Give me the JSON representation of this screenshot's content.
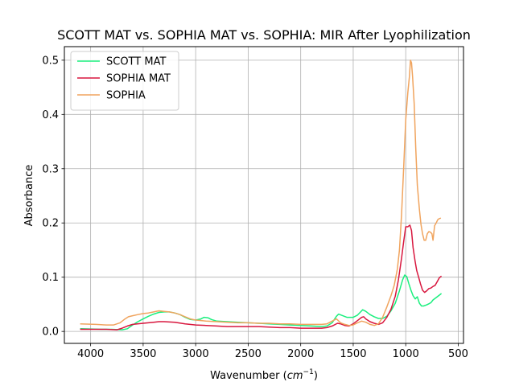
{
  "chart_data": {
    "type": "line",
    "title": "SCOTT MAT vs. SOPHIA MAT vs. SOPHIA: MIR After Lyophilization",
    "xlabel": "Wavenumber",
    "xlabel_unit_base": "cm",
    "xlabel_unit_exp": "−1",
    "ylabel": "Absorbance",
    "xlim": [
      4250,
      450
    ],
    "ylim": [
      -0.022,
      0.525
    ],
    "x_inverted": true,
    "grid": true,
    "legend_position": "top-left",
    "xticks": [
      4000,
      3500,
      3000,
      2500,
      2000,
      1500,
      1000,
      500
    ],
    "yticks": [
      0.0,
      0.1,
      0.2,
      0.3,
      0.4,
      0.5
    ],
    "xtick_labels": [
      "4000",
      "3500",
      "3000",
      "2500",
      "2000",
      "1500",
      "1000",
      "500"
    ],
    "ytick_labels": [
      "0.0",
      "0.1",
      "0.2",
      "0.3",
      "0.4",
      "0.5"
    ],
    "series": [
      {
        "name": "SCOTT MAT",
        "color": "#1aef7e",
        "points": [
          [
            4100,
            0.005
          ],
          [
            3900,
            0.004
          ],
          [
            3800,
            0.004
          ],
          [
            3700,
            0.003
          ],
          [
            3650,
            0.005
          ],
          [
            3600,
            0.012
          ],
          [
            3550,
            0.018
          ],
          [
            3500,
            0.023
          ],
          [
            3450,
            0.028
          ],
          [
            3400,
            0.032
          ],
          [
            3350,
            0.035
          ],
          [
            3300,
            0.036
          ],
          [
            3250,
            0.036
          ],
          [
            3200,
            0.034
          ],
          [
            3150,
            0.031
          ],
          [
            3100,
            0.026
          ],
          [
            3050,
            0.022
          ],
          [
            3000,
            0.021
          ],
          [
            2950,
            0.023
          ],
          [
            2920,
            0.026
          ],
          [
            2880,
            0.025
          ],
          [
            2850,
            0.022
          ],
          [
            2800,
            0.019
          ],
          [
            2700,
            0.018
          ],
          [
            2600,
            0.017
          ],
          [
            2500,
            0.016
          ],
          [
            2400,
            0.015
          ],
          [
            2300,
            0.014
          ],
          [
            2200,
            0.013
          ],
          [
            2100,
            0.012
          ],
          [
            2000,
            0.011
          ],
          [
            1900,
            0.01
          ],
          [
            1800,
            0.009
          ],
          [
            1750,
            0.01
          ],
          [
            1700,
            0.016
          ],
          [
            1660,
            0.028
          ],
          [
            1640,
            0.032
          ],
          [
            1600,
            0.029
          ],
          [
            1560,
            0.026
          ],
          [
            1500,
            0.026
          ],
          [
            1460,
            0.03
          ],
          [
            1430,
            0.036
          ],
          [
            1410,
            0.04
          ],
          [
            1380,
            0.037
          ],
          [
            1340,
            0.031
          ],
          [
            1300,
            0.027
          ],
          [
            1260,
            0.024
          ],
          [
            1220,
            0.024
          ],
          [
            1180,
            0.028
          ],
          [
            1140,
            0.038
          ],
          [
            1100,
            0.052
          ],
          [
            1060,
            0.075
          ],
          [
            1030,
            0.095
          ],
          [
            1010,
            0.104
          ],
          [
            990,
            0.101
          ],
          [
            970,
            0.088
          ],
          [
            950,
            0.076
          ],
          [
            930,
            0.066
          ],
          [
            910,
            0.06
          ],
          [
            890,
            0.064
          ],
          [
            870,
            0.052
          ],
          [
            850,
            0.047
          ],
          [
            830,
            0.047
          ],
          [
            800,
            0.049
          ],
          [
            780,
            0.051
          ],
          [
            760,
            0.053
          ],
          [
            740,
            0.058
          ],
          [
            720,
            0.061
          ],
          [
            700,
            0.064
          ],
          [
            680,
            0.067
          ],
          [
            660,
            0.07
          ]
        ]
      },
      {
        "name": "SOPHIA MAT",
        "color": "#d8173e",
        "points": [
          [
            4100,
            0.004
          ],
          [
            3950,
            0.004
          ],
          [
            3850,
            0.004
          ],
          [
            3750,
            0.003
          ],
          [
            3700,
            0.006
          ],
          [
            3650,
            0.01
          ],
          [
            3600,
            0.013
          ],
          [
            3500,
            0.015
          ],
          [
            3400,
            0.017
          ],
          [
            3350,
            0.018
          ],
          [
            3300,
            0.018
          ],
          [
            3200,
            0.017
          ],
          [
            3100,
            0.014
          ],
          [
            3000,
            0.012
          ],
          [
            2900,
            0.011
          ],
          [
            2800,
            0.01
          ],
          [
            2700,
            0.009
          ],
          [
            2600,
            0.009
          ],
          [
            2500,
            0.009
          ],
          [
            2400,
            0.009
          ],
          [
            2300,
            0.008
          ],
          [
            2200,
            0.007
          ],
          [
            2100,
            0.007
          ],
          [
            2000,
            0.006
          ],
          [
            1900,
            0.006
          ],
          [
            1800,
            0.006
          ],
          [
            1750,
            0.007
          ],
          [
            1700,
            0.01
          ],
          [
            1650,
            0.015
          ],
          [
            1620,
            0.014
          ],
          [
            1580,
            0.011
          ],
          [
            1540,
            0.01
          ],
          [
            1500,
            0.014
          ],
          [
            1460,
            0.02
          ],
          [
            1420,
            0.026
          ],
          [
            1400,
            0.027
          ],
          [
            1380,
            0.023
          ],
          [
            1340,
            0.018
          ],
          [
            1300,
            0.015
          ],
          [
            1260,
            0.013
          ],
          [
            1220,
            0.016
          ],
          [
            1180,
            0.026
          ],
          [
            1140,
            0.041
          ],
          [
            1100,
            0.065
          ],
          [
            1070,
            0.095
          ],
          [
            1040,
            0.135
          ],
          [
            1020,
            0.165
          ],
          [
            1000,
            0.193
          ],
          [
            980,
            0.193
          ],
          [
            960,
            0.196
          ],
          [
            945,
            0.186
          ],
          [
            930,
            0.155
          ],
          [
            910,
            0.128
          ],
          [
            895,
            0.112
          ],
          [
            880,
            0.102
          ],
          [
            860,
            0.088
          ],
          [
            840,
            0.076
          ],
          [
            820,
            0.072
          ],
          [
            800,
            0.075
          ],
          [
            780,
            0.079
          ],
          [
            760,
            0.08
          ],
          [
            740,
            0.083
          ],
          [
            720,
            0.085
          ],
          [
            700,
            0.092
          ],
          [
            680,
            0.099
          ],
          [
            660,
            0.102
          ]
        ]
      },
      {
        "name": "SOPHIA",
        "color": "#f0a45e",
        "points": [
          [
            4100,
            0.014
          ],
          [
            3950,
            0.013
          ],
          [
            3850,
            0.012
          ],
          [
            3780,
            0.012
          ],
          [
            3720,
            0.016
          ],
          [
            3680,
            0.022
          ],
          [
            3640,
            0.027
          ],
          [
            3600,
            0.029
          ],
          [
            3550,
            0.031
          ],
          [
            3500,
            0.033
          ],
          [
            3450,
            0.034
          ],
          [
            3400,
            0.036
          ],
          [
            3350,
            0.038
          ],
          [
            3300,
            0.037
          ],
          [
            3250,
            0.036
          ],
          [
            3200,
            0.034
          ],
          [
            3150,
            0.031
          ],
          [
            3100,
            0.027
          ],
          [
            3050,
            0.023
          ],
          [
            3000,
            0.021
          ],
          [
            2900,
            0.019
          ],
          [
            2800,
            0.018
          ],
          [
            2700,
            0.017
          ],
          [
            2600,
            0.016
          ],
          [
            2500,
            0.016
          ],
          [
            2400,
            0.015
          ],
          [
            2300,
            0.015
          ],
          [
            2200,
            0.014
          ],
          [
            2100,
            0.014
          ],
          [
            2000,
            0.013
          ],
          [
            1900,
            0.013
          ],
          [
            1800,
            0.013
          ],
          [
            1750,
            0.014
          ],
          [
            1700,
            0.019
          ],
          [
            1660,
            0.023
          ],
          [
            1620,
            0.016
          ],
          [
            1580,
            0.013
          ],
          [
            1540,
            0.011
          ],
          [
            1500,
            0.012
          ],
          [
            1460,
            0.016
          ],
          [
            1420,
            0.019
          ],
          [
            1380,
            0.017
          ],
          [
            1340,
            0.013
          ],
          [
            1300,
            0.011
          ],
          [
            1260,
            0.014
          ],
          [
            1220,
            0.026
          ],
          [
            1180,
            0.045
          ],
          [
            1140,
            0.066
          ],
          [
            1110,
            0.085
          ],
          [
            1080,
            0.115
          ],
          [
            1060,
            0.15
          ],
          [
            1040,
            0.215
          ],
          [
            1020,
            0.3
          ],
          [
            1000,
            0.39
          ],
          [
            980,
            0.44
          ],
          [
            965,
            0.47
          ],
          [
            955,
            0.5
          ],
          [
            945,
            0.495
          ],
          [
            935,
            0.47
          ],
          [
            920,
            0.42
          ],
          [
            905,
            0.34
          ],
          [
            890,
            0.27
          ],
          [
            870,
            0.225
          ],
          [
            855,
            0.198
          ],
          [
            840,
            0.18
          ],
          [
            825,
            0.168
          ],
          [
            810,
            0.168
          ],
          [
            795,
            0.18
          ],
          [
            780,
            0.184
          ],
          [
            765,
            0.183
          ],
          [
            750,
            0.18
          ],
          [
            740,
            0.168
          ],
          [
            725,
            0.195
          ],
          [
            710,
            0.2
          ],
          [
            695,
            0.206
          ],
          [
            680,
            0.208
          ],
          [
            665,
            0.209
          ]
        ]
      }
    ]
  }
}
